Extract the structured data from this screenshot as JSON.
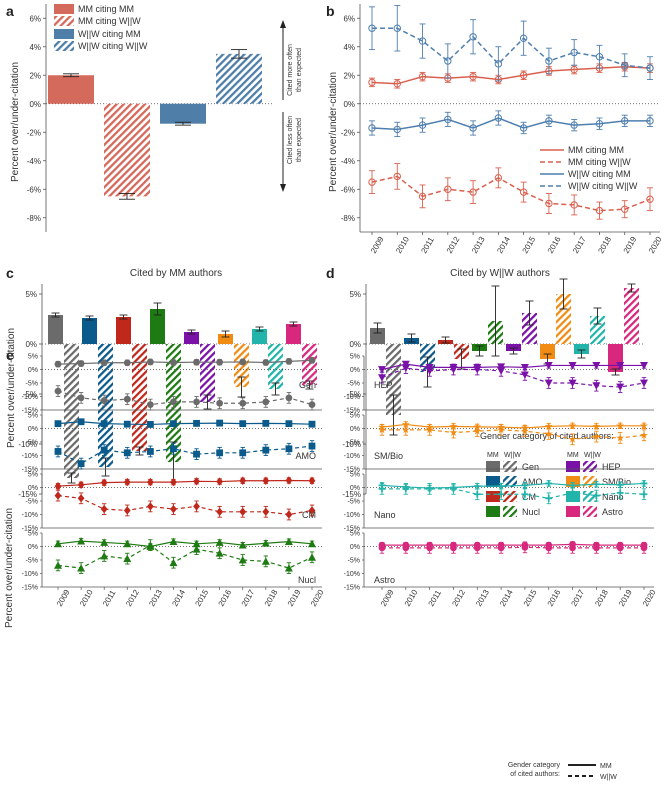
{
  "colors": {
    "mm_red": "#d9604e",
    "w_blue": "#4f7faf",
    "a_bar_red": "#d46a5c",
    "a_bar_blue": "#4f7fa8",
    "axis": "#555555",
    "err": "#222222",
    "cat": {
      "Gen": "#6b6b6b",
      "AMO": "#0b5a8c",
      "CM": "#c0281c",
      "Nucl": "#1e7a12",
      "HEP": "#7a12a8",
      "SM/Bio": "#f08c14",
      "Nano": "#22b4aa",
      "Astro": "#d8287e"
    }
  },
  "panels": {
    "a": {
      "letter": "a"
    },
    "b": {
      "letter": "b"
    },
    "c": {
      "letter": "c",
      "title": "Cited by MM authors"
    },
    "d": {
      "letter": "d",
      "title": "Cited by W||W authors"
    },
    "e": {
      "letter": "e"
    }
  },
  "ylabel": "Percent over/under-citation",
  "annotations": {
    "more": [
      "Cited more often",
      "than expected"
    ],
    "less": [
      "Cited less often",
      "than expected"
    ]
  },
  "legend_a": [
    "MM citing MM",
    "MM citing W||W",
    "W||W citing MM",
    "W||W citing W||W"
  ],
  "legend_b": [
    "MM citing MM",
    "MM citing W||W",
    "W||W citing MM",
    "W||W citing W||W"
  ],
  "legend_d": {
    "title": "Gender category of cited authors:",
    "col_mm": "MM",
    "col_ww": "W||W",
    "entries": [
      "Gen",
      "AMO",
      "CM",
      "Nucl",
      "HEP",
      "SM/Bio",
      "Nano",
      "Astro"
    ]
  },
  "legend_e": {
    "title": [
      "Gender category",
      "of cited authors:"
    ],
    "mm": "MM",
    "ww": "W||W"
  },
  "chart_data": [
    {
      "id": "a",
      "type": "bar",
      "categories": [
        "MM citing MM",
        "MM citing W||W",
        "W||W citing MM",
        "W||W citing W||W"
      ],
      "values": [
        2.0,
        -6.5,
        -1.4,
        3.5
      ],
      "errors": [
        0.1,
        0.2,
        0.1,
        0.3
      ],
      "ylim": [
        -9,
        7
      ],
      "yticks": [
        -8,
        -6,
        -4,
        -2,
        0,
        2,
        4,
        6
      ],
      "ytick_labels": [
        "-8%",
        "-6%",
        "-4%",
        "-2%",
        "0%",
        "2%",
        "4%",
        "6%"
      ]
    },
    {
      "id": "b",
      "type": "line",
      "x": [
        2009,
        2010,
        2011,
        2012,
        2013,
        2014,
        2015,
        2016,
        2017,
        2018,
        2019,
        2020
      ],
      "x_labels": [
        "2009",
        "2010",
        "2011",
        "2012",
        "2013",
        "2014",
        "2015",
        "2016",
        "2017",
        "2018",
        "2019",
        "2020"
      ],
      "ylim": [
        -9,
        7
      ],
      "yticks": [
        -8,
        -6,
        -4,
        -2,
        0,
        2,
        4,
        6
      ],
      "ytick_labels": [
        "-8%",
        "-6%",
        "-4%",
        "-2%",
        "0%",
        "2%",
        "4%",
        "6%"
      ],
      "series": [
        {
          "name": "MM citing MM",
          "values": [
            1.5,
            1.4,
            1.9,
            1.8,
            1.9,
            1.7,
            2.0,
            2.3,
            2.4,
            2.5,
            2.6,
            2.5
          ],
          "err": [
            0.3,
            0.3,
            0.3,
            0.3,
            0.3,
            0.3,
            0.3,
            0.3,
            0.3,
            0.3,
            0.3,
            0.3
          ]
        },
        {
          "name": "MM citing W||W",
          "values": [
            -5.5,
            -5.1,
            -6.5,
            -6.0,
            -6.2,
            -5.2,
            -6.2,
            -7.0,
            -7.1,
            -7.5,
            -7.4,
            -6.7
          ],
          "err": [
            0.8,
            0.9,
            0.8,
            0.8,
            0.8,
            0.7,
            0.7,
            0.7,
            0.7,
            0.6,
            0.6,
            0.8
          ]
        },
        {
          "name": "W||W citing MM",
          "values": [
            -1.7,
            -1.8,
            -1.5,
            -1.1,
            -1.7,
            -1.0,
            -1.7,
            -1.2,
            -1.5,
            -1.4,
            -1.2,
            -1.2
          ],
          "err": [
            0.5,
            0.5,
            0.5,
            0.5,
            0.5,
            0.5,
            0.4,
            0.4,
            0.4,
            0.4,
            0.4,
            0.4
          ]
        },
        {
          "name": "W||W citing W||W",
          "values": [
            5.3,
            5.3,
            4.4,
            3.0,
            4.7,
            2.8,
            4.6,
            3.0,
            3.6,
            3.3,
            2.7,
            2.5
          ],
          "err": [
            1.5,
            1.6,
            1.2,
            1.2,
            1.2,
            1.2,
            1.2,
            0.9,
            0.9,
            0.8,
            0.8,
            0.8
          ]
        }
      ]
    },
    {
      "id": "c",
      "type": "bar",
      "title": "Cited by MM authors",
      "categories": [
        "Gen",
        "AMO",
        "CM",
        "Nucl",
        "HEP",
        "SM/Bio",
        "Nano",
        "Astro"
      ],
      "mm_values": [
        2.9,
        2.6,
        2.7,
        3.5,
        1.2,
        1.0,
        1.5,
        2.0
      ],
      "mm_errors": [
        0.2,
        0.2,
        0.2,
        0.6,
        0.2,
        0.3,
        0.2,
        0.2
      ],
      "ww_values": [
        -13.4,
        -12.3,
        -10.7,
        -11.8,
        -5.8,
        -4.3,
        -4.5,
        -4.1
      ],
      "ww_errors": [
        0.5,
        0.9,
        0.4,
        2.0,
        0.7,
        1.0,
        0.6,
        0.4
      ],
      "ylim": [
        -15,
        6
      ],
      "yticks": [
        -15,
        -10,
        -5,
        0,
        5
      ],
      "ytick_labels": [
        "-15%",
        "-10%",
        "-5%",
        "0%",
        "5%"
      ]
    },
    {
      "id": "d",
      "type": "bar",
      "title": "Cited by W||W authors",
      "categories": [
        "Gen",
        "AMO",
        "CM",
        "Nucl",
        "HEP",
        "SM/Bio",
        "Nano",
        "Astro"
      ],
      "mm_values": [
        1.6,
        0.6,
        0.4,
        -0.7,
        -0.7,
        -1.5,
        -1.0,
        -2.8
      ],
      "mm_errors": [
        0.5,
        0.4,
        0.3,
        0.5,
        0.3,
        0.5,
        0.4,
        0.3
      ],
      "ww_values": [
        -7.1,
        -2.8,
        -1.5,
        2.3,
        3.1,
        5.0,
        2.8,
        5.6
      ],
      "ww_errors": [
        2.0,
        1.5,
        1.0,
        3.5,
        1.2,
        1.5,
        0.8,
        0.4
      ],
      "ylim": [
        -15,
        6
      ],
      "yticks": [
        -15,
        -10,
        -5,
        0,
        5
      ],
      "ytick_labels": [
        "-15%",
        "-10%",
        "-5%",
        "0%",
        "5%"
      ]
    },
    {
      "id": "e",
      "type": "line",
      "x": [
        2009,
        2010,
        2011,
        2012,
        2013,
        2014,
        2015,
        2016,
        2017,
        2018,
        2019,
        2020
      ],
      "x_labels": [
        "2009",
        "2010",
        "2011",
        "2012",
        "2013",
        "2014",
        "2015",
        "2016",
        "2017",
        "2018",
        "2019",
        "2020"
      ],
      "ylim": [
        -15,
        5
      ],
      "yticks": [
        -15,
        -10,
        -5,
        0,
        5
      ],
      "ytick_labels": [
        "-15%",
        "-10%",
        "-5%",
        "0%",
        "5%"
      ],
      "subplots": [
        {
          "label": "Gen",
          "marker": "circle",
          "mm": [
            2.0,
            2.2,
            2.5,
            2.5,
            2.8,
            2.6,
            2.7,
            2.7,
            2.8,
            2.6,
            3.0,
            3.4
          ],
          "ww": [
            -8.0,
            -10.5,
            -11.5,
            -11.0,
            -13.0,
            -12.0,
            -12.0,
            -12.5,
            -12.5,
            -12.0,
            -10.5,
            -13.0
          ]
        },
        {
          "label": "AMO",
          "marker": "square",
          "mm": [
            1.8,
            2.5,
            1.8,
            1.6,
            1.5,
            1.8,
            1.9,
            2.0,
            1.8,
            1.9,
            1.8,
            1.6
          ],
          "ww": [
            -8.5,
            -13.0,
            -8.0,
            -9.0,
            -8.5,
            -7.5,
            -9.5,
            -9.0,
            -9.0,
            -8.0,
            -7.5,
            -6.5
          ]
        },
        {
          "label": "CM",
          "marker": "diamond",
          "mm": [
            0.5,
            1.0,
            1.8,
            2.0,
            2.0,
            2.0,
            2.3,
            2.2,
            2.5,
            2.5,
            2.6,
            2.5
          ],
          "ww": [
            -3.0,
            -4.0,
            -8.0,
            -8.5,
            -7.0,
            -8.0,
            -7.0,
            -9.0,
            -9.0,
            -9.0,
            -10.0,
            -8.5
          ]
        },
        {
          "label": "Nucl",
          "marker": "triangle",
          "mm": [
            1.0,
            2.0,
            1.5,
            1.0,
            0.0,
            1.8,
            1.0,
            1.5,
            0.5,
            1.2,
            1.8,
            1.0
          ],
          "ww": [
            -7.0,
            -8.0,
            -3.5,
            -4.5,
            0.5,
            -6.0,
            -1.0,
            -2.5,
            -5.0,
            -5.5,
            -8.0,
            -4.0
          ]
        },
        {
          "label": "HEP",
          "marker": "triangle-down",
          "mm": [
            0.0,
            2.0,
            0.8,
            0.8,
            0.8,
            1.0,
            0.8,
            1.5,
            1.5,
            1.5,
            1.5,
            1.5
          ],
          "ww": [
            -3.0,
            0.5,
            -0.5,
            0.0,
            0.0,
            -0.5,
            -2.0,
            -5.0,
            -5.0,
            -6.0,
            -6.5,
            -5.0
          ]
        },
        {
          "label": "SM/Bio",
          "marker": "star",
          "mm": [
            0.5,
            1.5,
            0.5,
            0.8,
            0.6,
            0.5,
            0.2,
            0.8,
            1.0,
            0.8,
            1.0,
            1.0
          ],
          "ww": [
            -0.5,
            -0.5,
            -0.5,
            -1.5,
            -1.0,
            -0.5,
            -1.0,
            -2.0,
            -4.0,
            -3.0,
            -3.5,
            -2.5
          ]
        },
        {
          "label": "Nano",
          "marker": "plus",
          "mm": [
            0.8,
            0.2,
            -0.2,
            0.0,
            0.5,
            0.5,
            0.8,
            1.5,
            0.8,
            1.2,
            1.0,
            1.5
          ],
          "ww": [
            -0.5,
            -0.5,
            -0.5,
            -0.5,
            -2.5,
            -2.5,
            -2.5,
            -4.0,
            -2.0,
            -3.0,
            -2.0,
            -2.5
          ]
        },
        {
          "label": "Astro",
          "marker": "hexagon",
          "mm": [
            0.5,
            0.5,
            0.5,
            0.5,
            0.5,
            0.5,
            0.5,
            0.5,
            0.8,
            0.5,
            0.5,
            0.5
          ],
          "ww": [
            -0.5,
            -0.5,
            -0.5,
            -0.5,
            -0.5,
            -0.5,
            -0.3,
            -0.5,
            -0.5,
            -0.5,
            -0.5,
            -0.5
          ]
        }
      ]
    }
  ]
}
